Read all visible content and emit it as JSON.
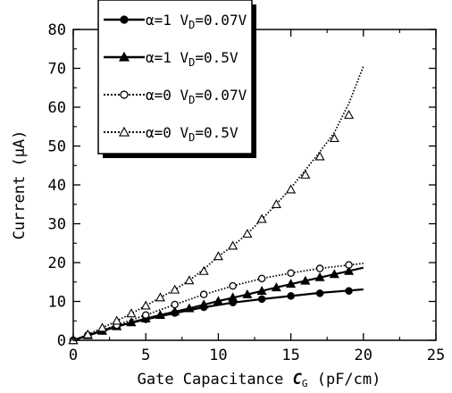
{
  "chart_data": {
    "type": "line",
    "xlabel_prefix": "Gate Capacitance ",
    "xlabel_symbol": "C",
    "xlabel_symbol_sub": "G",
    "xlabel_suffix": " (pF/cm)",
    "ylabel": "Current (μA)",
    "xlim": [
      0,
      25
    ],
    "ylim": [
      0,
      80
    ],
    "xticks": [
      "0",
      "5",
      "10",
      "15",
      "20",
      "25"
    ],
    "yticks": [
      "0",
      "10",
      "20",
      "30",
      "40",
      "50",
      "60",
      "70",
      "80"
    ],
    "grid": false,
    "legend_position": "top-left",
    "series": [
      {
        "name": "α=1 V_D=0.07V",
        "legend_main": "α=1 V",
        "legend_sub": "D",
        "legend_tail": "=0.07V",
        "marker": "filled-circle",
        "line": "solid",
        "x": [
          0,
          1,
          3,
          5,
          7,
          9,
          11,
          13,
          15,
          17,
          19
        ],
        "y": [
          0,
          1.3,
          3.6,
          5.4,
          7.0,
          8.5,
          9.7,
          10.6,
          11.4,
          12.1,
          12.7
        ],
        "curve_x": [
          0,
          1,
          3,
          5,
          7,
          9,
          11,
          13,
          15,
          17,
          20
        ],
        "curve_y": [
          0,
          1.3,
          3.6,
          5.4,
          7.0,
          8.5,
          9.7,
          10.6,
          11.4,
          12.2,
          13.1
        ]
      },
      {
        "name": "α=1 V_D=0.5V",
        "legend_main": "α=1 V",
        "legend_sub": "D",
        "legend_tail": "=0.5V",
        "marker": "filled-triangle",
        "line": "solid",
        "x": [
          0,
          1,
          2,
          3,
          4,
          5,
          6,
          7,
          8,
          9,
          10,
          11,
          12,
          13,
          14,
          15,
          16,
          17,
          18,
          19
        ],
        "y": [
          0,
          1.3,
          2.4,
          3.6,
          4.6,
          5.6,
          6.5,
          7.4,
          8.2,
          9.2,
          10.1,
          11.0,
          11.8,
          12.7,
          13.6,
          14.5,
          15.3,
          16.2,
          17.0,
          17.8
        ],
        "curve_x": [
          0,
          2,
          4,
          6,
          8,
          10,
          12,
          14,
          16,
          18,
          20
        ],
        "curve_y": [
          0,
          2.4,
          4.6,
          6.5,
          8.2,
          10.1,
          11.8,
          13.6,
          15.3,
          17.0,
          18.7
        ]
      },
      {
        "name": "α=0 V_D=0.07V",
        "legend_main": "α=0 V",
        "legend_sub": "D",
        "legend_tail": "=0.07V",
        "marker": "open-circle",
        "line": "dotted",
        "x": [
          0,
          1,
          3,
          5,
          7,
          9,
          11,
          13,
          15,
          17,
          19
        ],
        "y": [
          0,
          1.3,
          3.9,
          6.5,
          9.2,
          11.8,
          14.0,
          15.9,
          17.3,
          18.5,
          19.4
        ],
        "curve_x": [
          0,
          1,
          3,
          5,
          7,
          9,
          11,
          13,
          15,
          17,
          20
        ],
        "curve_y": [
          0,
          1.3,
          3.9,
          6.5,
          9.2,
          11.8,
          14.0,
          15.9,
          17.3,
          18.5,
          19.8
        ]
      },
      {
        "name": "α=0 V_D=0.5V",
        "legend_main": "α=0 V",
        "legend_sub": "D",
        "legend_tail": "=0.5V",
        "marker": "open-triangle",
        "line": "dotted",
        "x": [
          0,
          1,
          2,
          3,
          4,
          5,
          6,
          7,
          8,
          9,
          10,
          11,
          12,
          13,
          14,
          15,
          16,
          17,
          18,
          19
        ],
        "y": [
          0,
          1.5,
          3.2,
          5.0,
          6.9,
          8.9,
          11.0,
          13.0,
          15.4,
          17.8,
          21.6,
          24.3,
          27.4,
          31.2,
          35.0,
          38.8,
          42.6,
          47.3,
          52.0,
          58.0
        ],
        "curve_x": [
          0,
          1,
          2,
          3,
          4,
          5,
          6,
          7,
          8,
          9,
          10,
          11,
          12,
          13,
          14,
          15,
          16,
          17,
          18,
          19,
          20
        ],
        "curve_y": [
          0,
          1.5,
          3.2,
          5.0,
          6.9,
          8.9,
          11.0,
          13.0,
          15.4,
          18.3,
          21.6,
          24.3,
          27.4,
          31.2,
          35.0,
          39.2,
          43.8,
          48.5,
          53.5,
          61.0,
          70.5
        ]
      }
    ]
  }
}
